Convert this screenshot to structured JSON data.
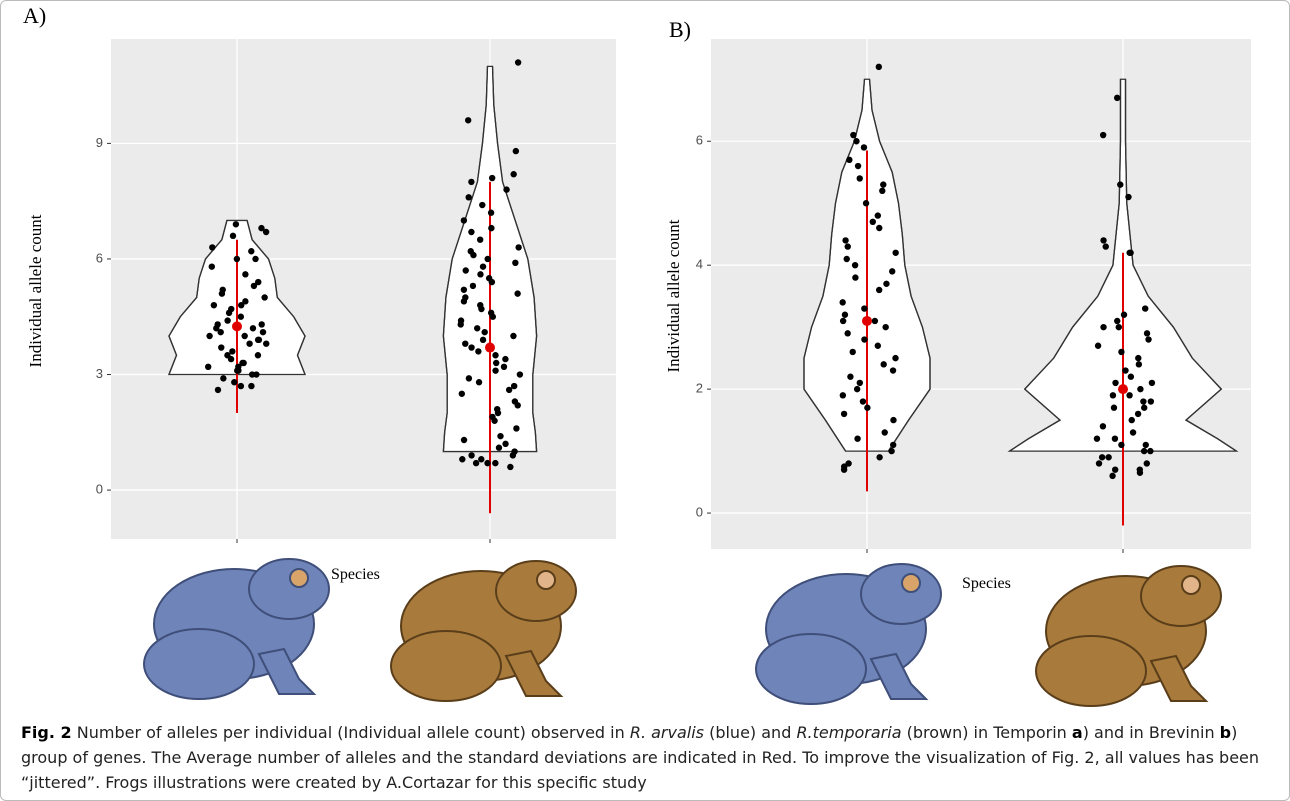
{
  "chart_data": [
    {
      "type": "violin",
      "panel_label": "A)",
      "y_label": "Individual allele count",
      "x_label": "Species",
      "categories": [
        null,
        null
      ],
      "ylim": [
        -1.27,
        11.71
      ],
      "yticks": [
        0,
        3,
        6,
        9
      ],
      "grid": true,
      "background": "#ebebeb",
      "point_color": "#000000",
      "summary_color": "#e00000",
      "groups": [
        {
          "violin_y": [
            3,
            3.5,
            4,
            4.5,
            5,
            5.5,
            6,
            6.5,
            7
          ],
          "violin_width": [
            0.54,
            0.48,
            0.54,
            0.45,
            0.32,
            0.3,
            0.25,
            0.12,
            0.08
          ],
          "mean": 4.25,
          "sd": 2.25,
          "points": [
            2.6,
            2.7,
            2.7,
            2.8,
            2.9,
            3.0,
            3.0,
            3.1,
            3.1,
            3.2,
            3.2,
            3.3,
            3.3,
            3.4,
            3.5,
            3.5,
            3.6,
            3.7,
            3.8,
            3.8,
            3.9,
            3.9,
            4.0,
            4.0,
            4.1,
            4.1,
            4.2,
            4.2,
            4.3,
            4.3,
            4.4,
            4.5,
            4.6,
            4.7,
            4.8,
            4.8,
            4.9,
            5.0,
            5.1,
            5.2,
            5.3,
            5.4,
            5.6,
            5.8,
            6.0,
            6.0,
            6.2,
            6.3,
            6.6,
            6.7,
            6.8,
            6.9
          ]
        },
        {
          "violin_y": [
            1,
            1.5,
            2,
            3,
            4,
            5,
            6,
            7,
            8,
            9,
            10,
            11
          ],
          "violin_width": [
            0.37,
            0.36,
            0.34,
            0.34,
            0.37,
            0.35,
            0.3,
            0.2,
            0.1,
            0.06,
            0.03,
            0.02
          ],
          "mean": 3.7,
          "sd": 4.3,
          "points": [
            0.6,
            0.7,
            0.7,
            0.7,
            0.8,
            0.8,
            0.9,
            0.9,
            1.0,
            1.1,
            1.2,
            1.3,
            1.4,
            1.6,
            1.8,
            1.9,
            2.0,
            2.1,
            2.2,
            2.3,
            2.5,
            2.6,
            2.7,
            2.8,
            2.9,
            3.0,
            3.1,
            3.2,
            3.3,
            3.4,
            3.5,
            3.6,
            3.7,
            3.8,
            3.9,
            4.0,
            4.1,
            4.2,
            4.3,
            4.4,
            4.5,
            4.6,
            4.7,
            4.8,
            4.9,
            5.0,
            5.1,
            5.2,
            5.3,
            5.4,
            5.5,
            5.6,
            5.7,
            5.8,
            5.9,
            6.0,
            6.1,
            6.2,
            6.3,
            6.5,
            6.7,
            6.8,
            7.0,
            7.2,
            7.4,
            7.6,
            7.8,
            8.0,
            8.1,
            8.2,
            8.8,
            9.6,
            11.1
          ]
        }
      ]
    },
    {
      "type": "violin",
      "panel_label": "B)",
      "y_label": "Individual allele count",
      "x_label": "Species",
      "categories": [
        null,
        null
      ],
      "ylim": [
        -0.58,
        7.65
      ],
      "yticks": [
        0,
        2,
        4,
        6
      ],
      "grid": true,
      "background": "#ebebeb",
      "point_color": "#000000",
      "summary_color": "#e00000",
      "groups": [
        {
          "violin_y": [
            1,
            1.5,
            2,
            2.5,
            3,
            3.5,
            4,
            4.5,
            5,
            5.5,
            6,
            6.5,
            7
          ],
          "violin_width": [
            0.17,
            0.33,
            0.5,
            0.5,
            0.44,
            0.35,
            0.3,
            0.28,
            0.25,
            0.2,
            0.1,
            0.04,
            0.02
          ],
          "mean": 3.1,
          "sd": 2.75,
          "points": [
            0.7,
            0.8,
            0.75,
            0.9,
            1.0,
            1.1,
            1.2,
            1.3,
            1.5,
            1.6,
            1.7,
            1.8,
            1.9,
            2.0,
            2.1,
            2.2,
            2.3,
            2.4,
            2.5,
            2.6,
            2.7,
            2.8,
            2.9,
            3.0,
            3.1,
            3.1,
            3.2,
            3.3,
            3.4,
            3.6,
            3.7,
            3.8,
            3.9,
            4.0,
            4.1,
            4.2,
            4.3,
            4.4,
            4.6,
            4.7,
            4.8,
            5.0,
            5.2,
            5.3,
            5.4,
            5.6,
            5.7,
            5.9,
            6.0,
            6.1,
            7.2
          ]
        },
        {
          "violin_y": [
            1,
            1.2,
            1.5,
            2,
            2.5,
            3,
            3.5,
            4,
            5,
            6,
            7
          ],
          "violin_width": [
            0.9,
            0.75,
            0.5,
            0.78,
            0.55,
            0.4,
            0.2,
            0.08,
            0.03,
            0.02,
            0.02
          ],
          "mean": 2.0,
          "sd": 2.2,
          "points": [
            0.6,
            0.65,
            0.7,
            0.7,
            0.8,
            0.8,
            0.9,
            0.9,
            1.0,
            1.0,
            1.1,
            1.1,
            1.2,
            1.2,
            1.3,
            1.4,
            1.5,
            1.6,
            1.7,
            1.7,
            1.8,
            1.8,
            1.9,
            1.9,
            2.0,
            2.0,
            2.1,
            2.1,
            2.2,
            2.3,
            2.4,
            2.5,
            2.6,
            2.7,
            2.8,
            2.9,
            3.0,
            3.0,
            3.1,
            3.2,
            3.3,
            4.2,
            4.2,
            4.3,
            4.4,
            5.1,
            5.3,
            6.1,
            6.7
          ]
        }
      ]
    }
  ],
  "caption": {
    "parts": [
      "Fig. 2",
      " Number of alleles per individual (Individual allele count) observed in ",
      "R. arvalis",
      " (blue) and ",
      "R.temporaria",
      " (brown) in Temporin ",
      "a",
      ") and in Brevinin ",
      "b",
      ") group of genes. The Average number of alleles and the standard deviations are indicated in Red. To improve the visualization of Fig. 2, all values has been “jittered”. Frogs illustrations were created by A.Cortazar for this specific study"
    ]
  }
}
